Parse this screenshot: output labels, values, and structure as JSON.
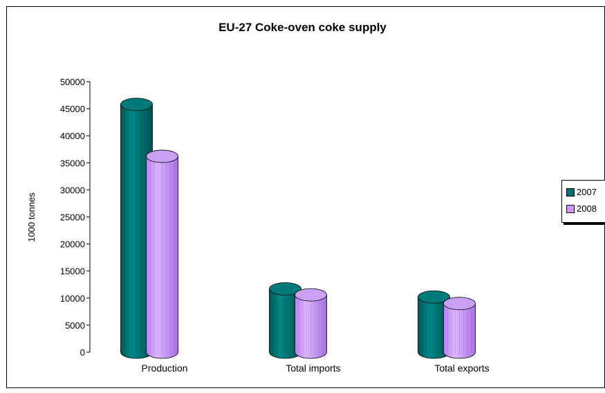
{
  "chart_data": {
    "type": "bar",
    "title": "EU-27 Coke-oven coke supply",
    "xlabel": "",
    "ylabel": "1000 tonnes",
    "categories": [
      "Production",
      "Total imports",
      "Total exports"
    ],
    "series": [
      {
        "name": "2007",
        "values": [
          45800,
          11700,
          10200
        ],
        "color": "#007070"
      },
      {
        "name": "2008",
        "values": [
          36200,
          10600,
          9000
        ],
        "color": "#cc99ff"
      }
    ],
    "ylim": [
      0,
      50000
    ],
    "yticks": [
      0,
      5000,
      10000,
      15000,
      20000,
      25000,
      30000,
      35000,
      40000,
      45000,
      50000
    ],
    "grid": false,
    "legend": "right"
  }
}
